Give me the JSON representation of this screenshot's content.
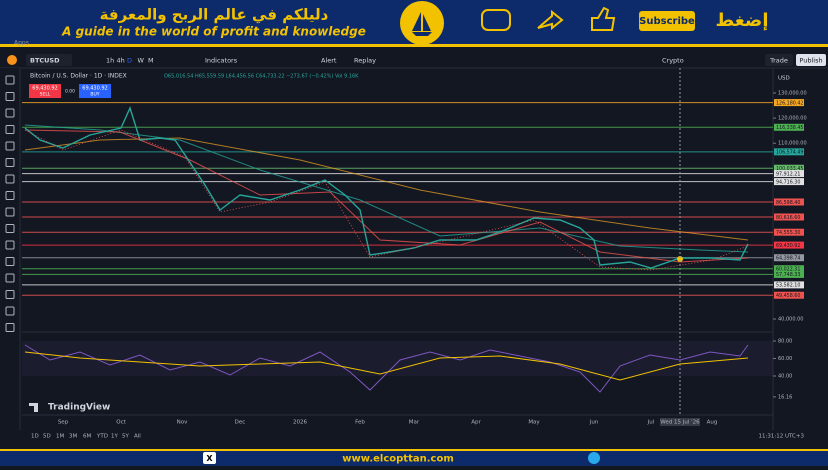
{
  "banner": {
    "arabic_title": "دليلكم في عالم الربح والمعرفة",
    "english_title": "A guide in the world of profit and knowledge",
    "subscribe": "Subscribe",
    "press": "إضغط"
  },
  "apps": "Apps",
  "toolbar": {
    "symbol": "BTCUSD",
    "intervals": [
      "1h",
      "4h",
      "D",
      "W",
      "M"
    ],
    "indicators": "Indicators",
    "alert": "Alert",
    "replay": "Replay",
    "market": "Crypto",
    "trade": "Trade",
    "publish": "Publish",
    "currency": "USD"
  },
  "legend": {
    "name": "Bitcoin / U.S. Dollar · 1D · INDEX",
    "ohlc": "O65,016.54 H65,559.59 L64,456.56 C64,733.22 −273.67 (−0.42%) Vol 9.16K",
    "sell_price": "69,430.92",
    "sell": "SELL",
    "spread": "0.00",
    "buy_price": "69,430.92",
    "buy": "BUY"
  },
  "price_axis": {
    "ticks": [
      {
        "value": 130000,
        "label": "130,000.00"
      },
      {
        "value": 120000,
        "label": "120,000.00"
      },
      {
        "value": 110000,
        "label": "110,000.00"
      },
      {
        "value": 40000,
        "label": "40,000.00"
      }
    ],
    "levels": [
      {
        "value": 126180.42,
        "label": "126,180.42",
        "color": "#f5a623"
      },
      {
        "value": 116338.45,
        "label": "116,338.45",
        "color": "#4caf50"
      },
      {
        "value": 106574.49,
        "label": "106,574.49",
        "color": "#26a69a"
      },
      {
        "value": 100033.45,
        "label": "100,033.45",
        "color": "#66bb6a"
      },
      {
        "value": 97912.21,
        "label": "97,912.21",
        "color": "#e0e0e0"
      },
      {
        "value": 94716.3,
        "label": "94,716.30",
        "color": "#e0e0e0"
      },
      {
        "value": 86598.4,
        "label": "86,598.40",
        "color": "#ef5350"
      },
      {
        "value": 80616.6,
        "label": "80,616.60",
        "color": "#ef5350"
      },
      {
        "value": 74555.3,
        "label": "74,555.30",
        "color": "#ef5350"
      },
      {
        "value": 69430.92,
        "label": "69,430.92",
        "color": "#f23645"
      },
      {
        "value": 64398.74,
        "label": "64,398.74",
        "color": "#9598a1"
      },
      {
        "value": 60022.31,
        "label": "60,022.31",
        "color": "#4caf50"
      },
      {
        "value": 57748.33,
        "label": "57,748.33",
        "color": "#4caf50"
      },
      {
        "value": 53582.1,
        "label": "53,582.10",
        "color": "#e0e0e0"
      },
      {
        "value": 49458.6,
        "label": "49,458.60",
        "color": "#ef5350"
      }
    ]
  },
  "indicator_axis": {
    "ticks": [
      {
        "value": 80,
        "label": "80.00"
      },
      {
        "value": 60,
        "label": "60.00"
      },
      {
        "value": 40,
        "label": "40.00"
      },
      {
        "value": 16.16,
        "label": "16.16"
      }
    ]
  },
  "time_axis": [
    "Sep",
    "Oct",
    "Nov",
    "Dec",
    "2026",
    "Feb",
    "Mar",
    "Apr",
    "May",
    "Jun",
    "Jul",
    "Wed 15 Jul '26",
    "Aug"
  ],
  "logo": "TradingView",
  "ranges": [
    "1D",
    "5D",
    "1M",
    "3M",
    "6M",
    "YTD",
    "1Y",
    "5Y",
    "All"
  ],
  "clock": "11:31:12 UTC+3",
  "footer": "www.elcopttan.com"
}
